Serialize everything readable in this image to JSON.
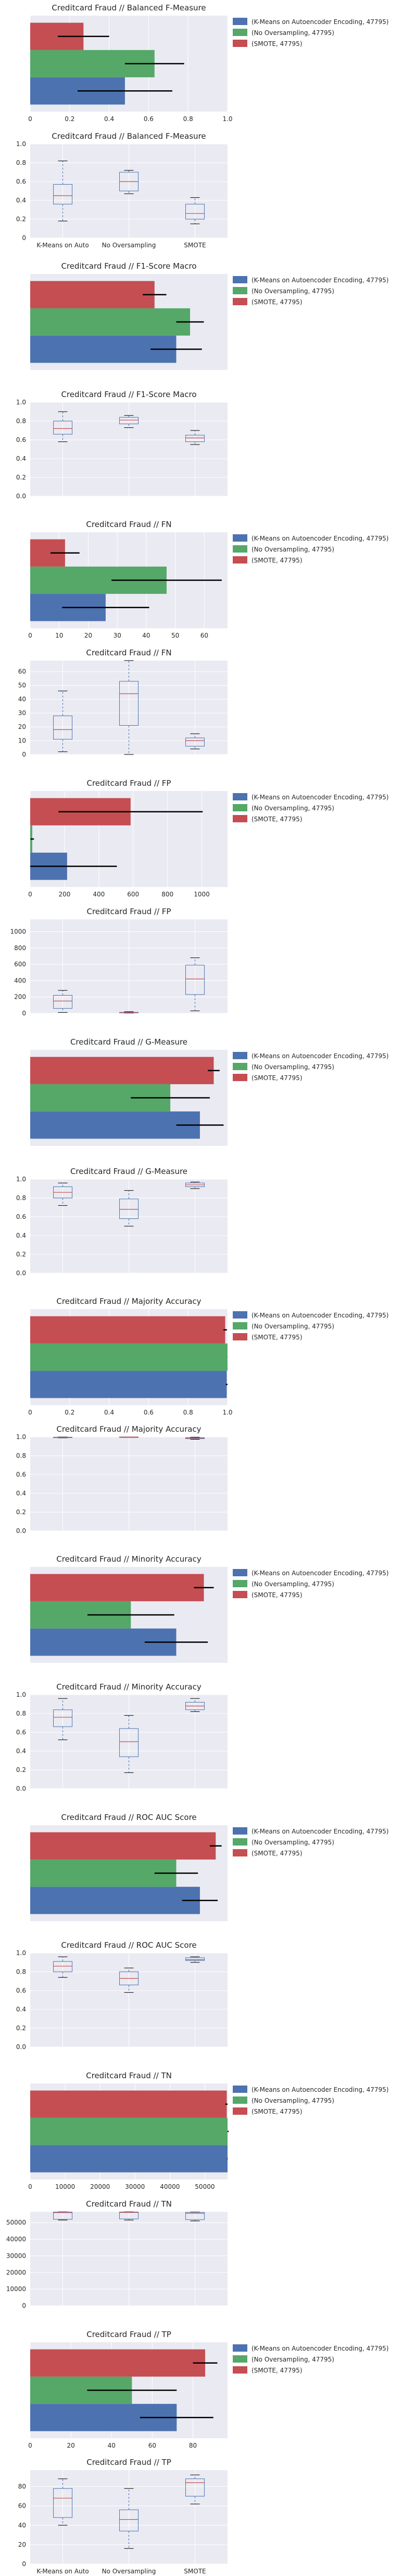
{
  "colors": {
    "plot_bg": "#EAEAF2",
    "grid": "#FFFFFF",
    "kmeans": "#4C72B0",
    "noovers": "#55A868",
    "smote": "#C44E52",
    "error_bar": "#000000",
    "box_line": "#4C72B0",
    "median": "#C44E52",
    "text": "#262626"
  },
  "legend": {
    "entries": [
      "(K-Means on Autoencoder Encoding, 47795)",
      "(No Oversampling, 47795)",
      "(SMOTE, 47795)"
    ]
  },
  "chart_data": [
    {
      "type": "bar",
      "orientation": "horizontal",
      "title": "Creditcard Fraud // Balanced F-Measure",
      "xlim": [
        0,
        1
      ],
      "xticks": [
        "0",
        "0.2",
        "0.4",
        "0.6",
        "0.8",
        "1.0"
      ],
      "xtick_values": [
        0,
        0.2,
        0.4,
        0.6,
        0.8,
        1.0
      ],
      "series": [
        {
          "name": "(K-Means on Autoencoder Encoding, 47795)",
          "value": 0.48,
          "error": 0.24
        },
        {
          "name": "(No Oversampling, 47795)",
          "value": 0.63,
          "error": 0.15
        },
        {
          "name": "(SMOTE, 47795)",
          "value": 0.27,
          "error": 0.13
        }
      ]
    },
    {
      "type": "box",
      "title": "Creditcard Fraud // Balanced F-Measure",
      "ylim": [
        0,
        1
      ],
      "yticks": [
        "0",
        "0.2",
        "0.4",
        "0.6",
        "0.8",
        "1.0"
      ],
      "ytick_values": [
        0,
        0.2,
        0.4,
        0.6,
        0.8,
        1.0
      ],
      "categories": [
        "K-Means on Auto",
        "No Oversampling",
        "SMOTE"
      ],
      "boxes": [
        {
          "whisker_low": 0.18,
          "q1": 0.36,
          "median": 0.45,
          "q3": 0.57,
          "whisker_high": 0.82
        },
        {
          "whisker_low": 0.47,
          "q1": 0.5,
          "median": 0.6,
          "q3": 0.7,
          "whisker_high": 0.72
        },
        {
          "whisker_low": 0.15,
          "q1": 0.2,
          "median": 0.26,
          "q3": 0.36,
          "whisker_high": 0.43
        }
      ]
    },
    {
      "type": "bar",
      "orientation": "horizontal",
      "title": "Creditcard Fraud // F1-Score Macro",
      "xlim": [
        0,
        1
      ],
      "xticks": [],
      "xtick_values": [],
      "series": [
        {
          "name": "(K-Means on Autoencoder Encoding, 47795)",
          "value": 0.74,
          "error": 0.13
        },
        {
          "name": "(No Oversampling, 47795)",
          "value": 0.81,
          "error": 0.07
        },
        {
          "name": "(SMOTE, 47795)",
          "value": 0.63,
          "error": 0.06
        }
      ]
    },
    {
      "type": "box",
      "title": "Creditcard Fraud // F1-Score Macro",
      "ylim": [
        0,
        1
      ],
      "yticks": [
        "0.0",
        "0.2",
        "0.4",
        "0.6",
        "0.8",
        "1.0"
      ],
      "ytick_values": [
        0,
        0.2,
        0.4,
        0.6,
        0.8,
        1.0
      ],
      "categories": [],
      "boxes": [
        {
          "whisker_low": 0.58,
          "q1": 0.66,
          "median": 0.72,
          "q3": 0.8,
          "whisker_high": 0.9
        },
        {
          "whisker_low": 0.73,
          "q1": 0.77,
          "median": 0.81,
          "q3": 0.84,
          "whisker_high": 0.86
        },
        {
          "whisker_low": 0.55,
          "q1": 0.58,
          "median": 0.62,
          "q3": 0.65,
          "whisker_high": 0.7
        }
      ]
    },
    {
      "type": "bar",
      "orientation": "horizontal",
      "title": "Creditcard Fraud // FN",
      "xlim": [
        0,
        68
      ],
      "xticks": [
        "0",
        "10",
        "20",
        "30",
        "40",
        "50",
        "60"
      ],
      "xtick_values": [
        0,
        10,
        20,
        30,
        40,
        50,
        60
      ],
      "series": [
        {
          "name": "(K-Means on Autoencoder Encoding, 47795)",
          "value": 26,
          "error": 15
        },
        {
          "name": "(No Oversampling, 47795)",
          "value": 47,
          "error": 19
        },
        {
          "name": "(SMOTE, 47795)",
          "value": 12,
          "error": 5
        }
      ]
    },
    {
      "type": "box",
      "title": "Creditcard Fraud // FN",
      "ylim": [
        0,
        68
      ],
      "yticks": [
        "0",
        "10",
        "20",
        "30",
        "40",
        "50",
        "60"
      ],
      "ytick_values": [
        0,
        10,
        20,
        30,
        40,
        50,
        60
      ],
      "categories": [],
      "boxes": [
        {
          "whisker_low": 2,
          "q1": 11,
          "median": 18,
          "q3": 28,
          "whisker_high": 46
        },
        {
          "whisker_low": 0,
          "q1": 21,
          "median": 44,
          "q3": 53,
          "whisker_high": 68
        },
        {
          "whisker_low": 4,
          "q1": 6,
          "median": 10,
          "q3": 12,
          "whisker_high": 15
        }
      ]
    },
    {
      "type": "bar",
      "orientation": "horizontal",
      "title": "Creditcard Fraud // FP",
      "xlim": [
        0,
        1150
      ],
      "xticks": [
        "0",
        "200",
        "400",
        "600",
        "800",
        "1000"
      ],
      "xtick_values": [
        0,
        200,
        400,
        600,
        800,
        1000
      ],
      "series": [
        {
          "name": "(K-Means on Autoencoder Encoding, 47795)",
          "value": 215,
          "error": 290
        },
        {
          "name": "(No Oversampling, 47795)",
          "value": 12,
          "error": 10
        },
        {
          "name": "(SMOTE, 47795)",
          "value": 585,
          "error": 420
        }
      ]
    },
    {
      "type": "box",
      "title": "Creditcard Fraud // FP",
      "ylim": [
        0,
        1150
      ],
      "yticks": [
        "0",
        "200",
        "400",
        "600",
        "800",
        "1000"
      ],
      "ytick_values": [
        0,
        200,
        400,
        600,
        800,
        1000
      ],
      "categories": [],
      "boxes": [
        {
          "whisker_low": 10,
          "q1": 60,
          "median": 150,
          "q3": 220,
          "whisker_high": 280
        },
        {
          "whisker_low": 2,
          "q1": 5,
          "median": 8,
          "q3": 12,
          "whisker_high": 20
        },
        {
          "whisker_low": 30,
          "q1": 230,
          "median": 420,
          "q3": 590,
          "whisker_high": 680
        }
      ]
    },
    {
      "type": "bar",
      "orientation": "horizontal",
      "title": "Creditcard Fraud // G-Measure",
      "xlim": [
        0,
        1
      ],
      "xticks": [],
      "xtick_values": [],
      "series": [
        {
          "name": "(K-Means on Autoencoder Encoding, 47795)",
          "value": 0.86,
          "error": 0.12
        },
        {
          "name": "(No Oversampling, 47795)",
          "value": 0.71,
          "error": 0.2
        },
        {
          "name": "(SMOTE, 47795)",
          "value": 0.93,
          "error": 0.03
        }
      ]
    },
    {
      "type": "box",
      "title": "Creditcard Fraud // G-Measure",
      "ylim": [
        0,
        1
      ],
      "yticks": [
        "0.0",
        "0.2",
        "0.4",
        "0.6",
        "0.8",
        "1.0"
      ],
      "ytick_values": [
        0,
        0.2,
        0.4,
        0.6,
        0.8,
        1.0
      ],
      "categories": [],
      "boxes": [
        {
          "whisker_low": 0.72,
          "q1": 0.8,
          "median": 0.86,
          "q3": 0.92,
          "whisker_high": 0.96
        },
        {
          "whisker_low": 0.5,
          "q1": 0.58,
          "median": 0.68,
          "q3": 0.79,
          "whisker_high": 0.88
        },
        {
          "whisker_low": 0.9,
          "q1": 0.92,
          "median": 0.94,
          "q3": 0.96,
          "whisker_high": 0.97
        }
      ]
    },
    {
      "type": "bar",
      "orientation": "horizontal",
      "title": "Creditcard Fraud // Majority Accuracy",
      "xlim": [
        0,
        1
      ],
      "xticks": [
        "0",
        "0.2",
        "0.4",
        "0.6",
        "0.8",
        "1.0"
      ],
      "xtick_values": [
        0,
        0.2,
        0.4,
        0.6,
        0.8,
        1.0
      ],
      "series": [
        {
          "name": "(K-Means on Autoencoder Encoding, 47795)",
          "value": 0.996,
          "error": 0.005
        },
        {
          "name": "(No Oversampling, 47795)",
          "value": 0.9998,
          "error": 0.0003
        },
        {
          "name": "(SMOTE, 47795)",
          "value": 0.988,
          "error": 0.009
        }
      ]
    },
    {
      "type": "box",
      "title": "Creditcard Fraud // Majority Accuracy",
      "ylim": [
        0,
        1
      ],
      "yticks": [
        "0.0",
        "0.2",
        "0.4",
        "0.6",
        "0.8",
        "1.0"
      ],
      "ytick_values": [
        0,
        0.2,
        0.4,
        0.6,
        0.8,
        1.0
      ],
      "categories": [],
      "boxes": [
        {
          "whisker_low": 0.99,
          "q1": 0.993,
          "median": 0.996,
          "q3": 0.998,
          "whisker_high": 1.0
        },
        {
          "whisker_low": 0.999,
          "q1": 0.9995,
          "median": 0.9998,
          "q3": 1.0,
          "whisker_high": 1.0
        },
        {
          "whisker_low": 0.975,
          "q1": 0.982,
          "median": 0.988,
          "q3": 0.993,
          "whisker_high": 0.998
        }
      ]
    },
    {
      "type": "bar",
      "orientation": "horizontal",
      "title": "Creditcard Fraud // Minority Accuracy",
      "xlim": [
        0,
        1
      ],
      "xticks": [],
      "xtick_values": [],
      "series": [
        {
          "name": "(K-Means on Autoencoder Encoding, 47795)",
          "value": 0.74,
          "error": 0.16
        },
        {
          "name": "(No Oversampling, 47795)",
          "value": 0.51,
          "error": 0.22
        },
        {
          "name": "(SMOTE, 47795)",
          "value": 0.88,
          "error": 0.05
        }
      ]
    },
    {
      "type": "box",
      "title": "Creditcard Fraud // Minority Accuracy",
      "ylim": [
        0,
        1
      ],
      "yticks": [
        "0.0",
        "0.2",
        "0.4",
        "0.6",
        "0.8",
        "1.0"
      ],
      "ytick_values": [
        0,
        0.2,
        0.4,
        0.6,
        0.8,
        1.0
      ],
      "categories": [],
      "boxes": [
        {
          "whisker_low": 0.52,
          "q1": 0.66,
          "median": 0.76,
          "q3": 0.84,
          "whisker_high": 0.96
        },
        {
          "whisker_low": 0.17,
          "q1": 0.34,
          "median": 0.5,
          "q3": 0.64,
          "whisker_high": 0.78
        },
        {
          "whisker_low": 0.82,
          "q1": 0.84,
          "median": 0.88,
          "q3": 0.92,
          "whisker_high": 0.96
        }
      ]
    },
    {
      "type": "bar",
      "orientation": "horizontal",
      "title": "Creditcard Fraud // ROC AUC Score",
      "xlim": [
        0,
        1
      ],
      "xticks": [],
      "xtick_values": [],
      "series": [
        {
          "name": "(K-Means on Autoencoder Encoding, 47795)",
          "value": 0.86,
          "error": 0.09
        },
        {
          "name": "(No Oversampling, 47795)",
          "value": 0.74,
          "error": 0.11
        },
        {
          "name": "(SMOTE, 47795)",
          "value": 0.94,
          "error": 0.03
        }
      ]
    },
    {
      "type": "box",
      "title": "Creditcard Fraud // ROC AUC Score",
      "ylim": [
        0,
        1
      ],
      "yticks": [
        "0.0",
        "0.2",
        "0.4",
        "0.6",
        "0.8",
        "1.0"
      ],
      "ytick_values": [
        0,
        0.2,
        0.4,
        0.6,
        0.8,
        1.0
      ],
      "categories": [],
      "boxes": [
        {
          "whisker_low": 0.74,
          "q1": 0.8,
          "median": 0.86,
          "q3": 0.91,
          "whisker_high": 0.96
        },
        {
          "whisker_low": 0.58,
          "q1": 0.66,
          "median": 0.73,
          "q3": 0.8,
          "whisker_high": 0.84
        },
        {
          "whisker_low": 0.9,
          "q1": 0.92,
          "median": 0.93,
          "q3": 0.95,
          "whisker_high": 0.96
        }
      ]
    },
    {
      "type": "bar",
      "orientation": "horizontal",
      "title": "Creditcard Fraud // TN",
      "xlim": [
        0,
        56500
      ],
      "xticks": [
        "0",
        "10000",
        "20000",
        "30000",
        "40000",
        "50000"
      ],
      "xtick_values": [
        0,
        10000,
        20000,
        30000,
        40000,
        50000
      ],
      "series": [
        {
          "name": "(K-Means on Autoencoder Encoding, 47795)",
          "value": 56650,
          "error": 300
        },
        {
          "name": "(No Oversampling, 47795)",
          "value": 56850,
          "error": 20
        },
        {
          "name": "(SMOTE, 47795)",
          "value": 56280,
          "error": 400
        }
      ]
    },
    {
      "type": "box",
      "title": "Creditcard Fraud // TN",
      "ylim": [
        0,
        56500
      ],
      "yticks": [
        "0",
        "10000",
        "20000",
        "30000",
        "40000",
        "50000"
      ],
      "ytick_values": [
        0,
        10000,
        20000,
        30000,
        40000,
        50000
      ],
      "categories": [],
      "boxes": [
        {
          "whisker_low": 51500,
          "q1": 52000,
          "median": 56000,
          "q3": 56400,
          "whisker_high": 56500
        },
        {
          "whisker_low": 51500,
          "q1": 52200,
          "median": 56100,
          "q3": 56400,
          "whisker_high": 56500
        },
        {
          "whisker_low": 51000,
          "q1": 51800,
          "median": 55600,
          "q3": 56200,
          "whisker_high": 56400
        }
      ]
    },
    {
      "type": "bar",
      "orientation": "horizontal",
      "title": "Creditcard Fraud // TP",
      "xlim": [
        0,
        97
      ],
      "xticks": [
        "0",
        "20",
        "40",
        "60",
        "80"
      ],
      "xtick_values": [
        0,
        20,
        40,
        60,
        80
      ],
      "series": [
        {
          "name": "(K-Means on Autoencoder Encoding, 47795)",
          "value": 72,
          "error": 18
        },
        {
          "name": "(No Oversampling, 47795)",
          "value": 50,
          "error": 22
        },
        {
          "name": "(SMOTE, 47795)",
          "value": 86,
          "error": 6
        }
      ]
    },
    {
      "type": "box",
      "title": "Creditcard Fraud // TP",
      "ylim": [
        0,
        97
      ],
      "yticks": [
        "0",
        "20",
        "40",
        "60",
        "80"
      ],
      "ytick_values": [
        0,
        20,
        40,
        60,
        80
      ],
      "categories": [
        "K-Means on Auto",
        "No Oversampling",
        "SMOTE"
      ],
      "boxes": [
        {
          "whisker_low": 40,
          "q1": 48,
          "median": 68,
          "q3": 78,
          "whisker_high": 88
        },
        {
          "whisker_low": 16,
          "q1": 34,
          "median": 46,
          "q3": 56,
          "whisker_high": 78
        },
        {
          "whisker_low": 62,
          "q1": 70,
          "median": 84,
          "q3": 88,
          "whisker_high": 92
        }
      ]
    }
  ]
}
